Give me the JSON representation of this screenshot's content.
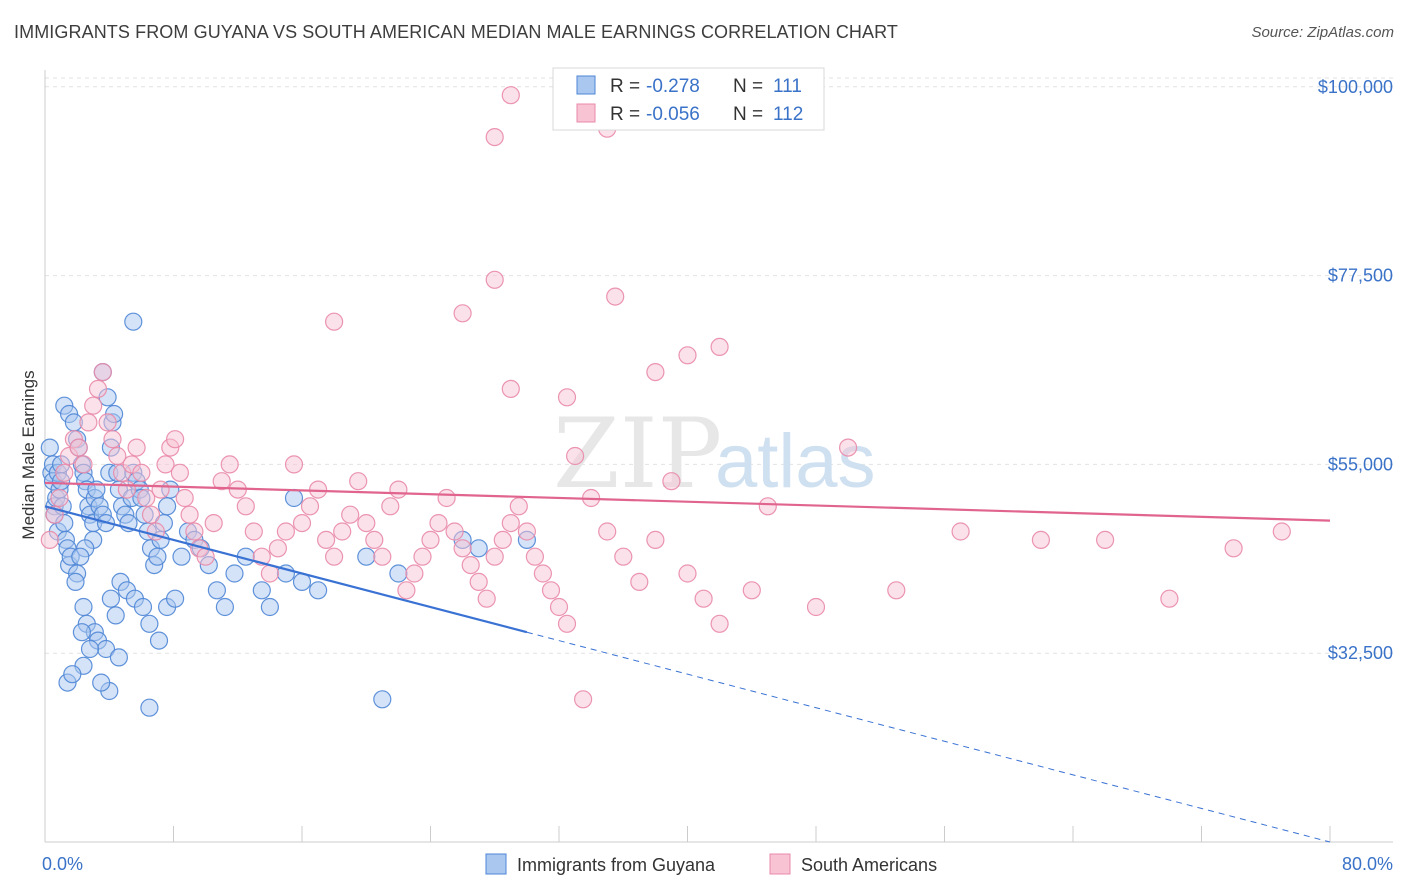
{
  "title": "IMMIGRANTS FROM GUYANA VS SOUTH AMERICAN MEDIAN MALE EARNINGS CORRELATION CHART",
  "source": "Source: ZipAtlas.com",
  "watermark": {
    "zip": "ZIP",
    "atlas": "atlas"
  },
  "colors": {
    "blue_fill": "#aac8ef",
    "blue_stroke": "#4f86d6",
    "blue_line": "#3a72d4",
    "pink_fill": "#f8c3d3",
    "pink_stroke": "#e989a9",
    "pink_line": "#e0648e",
    "grid": "#e2e2e2",
    "axis_text": "#3a72c8"
  },
  "chart_data": {
    "type": "scatter",
    "xlabel": "",
    "ylabel": "Median Male Earnings",
    "xlim": [
      0,
      80
    ],
    "ylim": [
      10000,
      102000
    ],
    "x_tick_labels": {
      "min": "0.0%",
      "max": "80.0%"
    },
    "y_ticks": [
      {
        "value": 100000,
        "label": "$100,000"
      },
      {
        "value": 77500,
        "label": "$77,500"
      },
      {
        "value": 55000,
        "label": "$55,000"
      },
      {
        "value": 32500,
        "label": "$32,500"
      }
    ],
    "legend": {
      "placement": "top-center",
      "rows": [
        {
          "r_label": "R = ",
          "r_value": "-0.278",
          "n_label": "N = ",
          "n_value": "111"
        },
        {
          "r_label": "R = ",
          "r_value": "-0.056",
          "n_label": "N = ",
          "n_value": "112"
        }
      ]
    },
    "series": [
      {
        "name": "Immigrants from Guyana",
        "color": "#4f86d6",
        "trend": {
          "x0": 0,
          "y0": 50000,
          "x1": 30,
          "y1": 35000,
          "dash_to_x": 80,
          "dash_to_y": 10000
        },
        "points": [
          [
            0.3,
            57
          ],
          [
            0.4,
            54
          ],
          [
            0.5,
            55
          ],
          [
            0.5,
            53
          ],
          [
            0.6,
            50
          ],
          [
            0.6,
            49
          ],
          [
            0.7,
            51
          ],
          [
            0.8,
            54
          ],
          [
            0.8,
            47
          ],
          [
            0.9,
            52
          ],
          [
            1.0,
            55
          ],
          [
            1.0,
            53
          ],
          [
            1.1,
            50
          ],
          [
            1.2,
            48
          ],
          [
            1.3,
            46
          ],
          [
            1.4,
            45
          ],
          [
            1.5,
            43
          ],
          [
            1.6,
            44
          ],
          [
            1.2,
            62
          ],
          [
            1.5,
            61
          ],
          [
            1.8,
            60
          ],
          [
            2.0,
            58
          ],
          [
            2.1,
            57
          ],
          [
            2.3,
            55
          ],
          [
            2.4,
            54
          ],
          [
            2.5,
            53
          ],
          [
            2.6,
            52
          ],
          [
            2.7,
            50
          ],
          [
            2.8,
            49
          ],
          [
            3.0,
            48
          ],
          [
            3.1,
            51
          ],
          [
            3.2,
            52
          ],
          [
            3.4,
            50
          ],
          [
            3.6,
            49
          ],
          [
            3.8,
            48
          ],
          [
            4.0,
            54
          ],
          [
            4.1,
            57
          ],
          [
            4.2,
            60
          ],
          [
            4.3,
            61
          ],
          [
            4.5,
            54
          ],
          [
            4.6,
            52
          ],
          [
            4.8,
            50
          ],
          [
            5.0,
            49
          ],
          [
            5.2,
            48
          ],
          [
            5.4,
            51
          ],
          [
            5.5,
            54
          ],
          [
            5.7,
            53
          ],
          [
            5.9,
            52
          ],
          [
            6.0,
            51
          ],
          [
            6.2,
            49
          ],
          [
            6.4,
            47
          ],
          [
            6.6,
            45
          ],
          [
            6.8,
            43
          ],
          [
            7.0,
            44
          ],
          [
            7.2,
            46
          ],
          [
            7.4,
            48
          ],
          [
            7.6,
            50
          ],
          [
            7.8,
            52
          ],
          [
            3.0,
            46
          ],
          [
            2.5,
            45
          ],
          [
            2.2,
            44
          ],
          [
            2.0,
            42
          ],
          [
            1.9,
            41
          ],
          [
            2.4,
            38
          ],
          [
            2.6,
            36
          ],
          [
            3.1,
            35
          ],
          [
            3.3,
            34
          ],
          [
            3.8,
            33
          ],
          [
            4.1,
            39
          ],
          [
            4.4,
            37
          ],
          [
            4.7,
            41
          ],
          [
            5.1,
            40
          ],
          [
            5.6,
            39
          ],
          [
            6.1,
            38
          ],
          [
            6.5,
            36
          ],
          [
            7.1,
            34
          ],
          [
            7.6,
            38
          ],
          [
            8.1,
            39
          ],
          [
            8.5,
            44
          ],
          [
            8.9,
            47
          ],
          [
            9.3,
            46
          ],
          [
            9.7,
            45
          ],
          [
            10.2,
            43
          ],
          [
            10.7,
            40
          ],
          [
            11.2,
            38
          ],
          [
            11.8,
            42
          ],
          [
            12.5,
            44
          ],
          [
            13.5,
            40
          ],
          [
            14.0,
            38
          ],
          [
            15.0,
            42
          ],
          [
            16.0,
            41
          ],
          [
            17.0,
            40
          ],
          [
            5.5,
            72
          ],
          [
            3.6,
            66
          ],
          [
            3.9,
            63
          ],
          [
            4.6,
            32
          ],
          [
            6.5,
            26
          ],
          [
            4.0,
            28
          ],
          [
            3.5,
            29
          ],
          [
            1.4,
            29
          ],
          [
            2.4,
            31
          ],
          [
            2.8,
            33
          ],
          [
            1.7,
            30
          ],
          [
            2.3,
            35
          ],
          [
            20.0,
            44
          ],
          [
            22.0,
            42
          ],
          [
            26.0,
            46
          ],
          [
            27.0,
            45
          ],
          [
            30.0,
            46
          ],
          [
            15.5,
            51
          ],
          [
            21.0,
            27
          ]
        ]
      },
      {
        "name": "South Americans",
        "color": "#e989a9",
        "trend": {
          "x0": 0,
          "y0": 52800,
          "x1": 80,
          "y1": 48300
        },
        "points": [
          [
            0.3,
            46
          ],
          [
            0.6,
            49
          ],
          [
            0.9,
            51
          ],
          [
            1.2,
            54
          ],
          [
            1.5,
            56
          ],
          [
            1.8,
            58
          ],
          [
            2.1,
            57
          ],
          [
            2.4,
            55
          ],
          [
            2.7,
            60
          ],
          [
            3.0,
            62
          ],
          [
            3.3,
            64
          ],
          [
            3.6,
            66
          ],
          [
            3.9,
            60
          ],
          [
            4.2,
            58
          ],
          [
            4.5,
            56
          ],
          [
            4.8,
            54
          ],
          [
            5.1,
            52
          ],
          [
            5.4,
            55
          ],
          [
            5.7,
            57
          ],
          [
            6.0,
            54
          ],
          [
            6.3,
            51
          ],
          [
            6.6,
            49
          ],
          [
            6.9,
            47
          ],
          [
            7.2,
            52
          ],
          [
            7.5,
            55
          ],
          [
            7.8,
            57
          ],
          [
            8.1,
            58
          ],
          [
            8.4,
            54
          ],
          [
            8.7,
            51
          ],
          [
            9.0,
            49
          ],
          [
            9.3,
            47
          ],
          [
            9.6,
            45
          ],
          [
            10.0,
            44
          ],
          [
            10.5,
            48
          ],
          [
            11.0,
            53
          ],
          [
            11.5,
            55
          ],
          [
            12.0,
            52
          ],
          [
            12.5,
            50
          ],
          [
            13.0,
            47
          ],
          [
            13.5,
            44
          ],
          [
            14.0,
            42
          ],
          [
            14.5,
            45
          ],
          [
            15.0,
            47
          ],
          [
            15.5,
            55
          ],
          [
            16.0,
            48
          ],
          [
            16.5,
            50
          ],
          [
            17.0,
            52
          ],
          [
            17.5,
            46
          ],
          [
            18.0,
            44
          ],
          [
            18.5,
            47
          ],
          [
            19.0,
            49
          ],
          [
            19.5,
            53
          ],
          [
            20.0,
            48
          ],
          [
            20.5,
            46
          ],
          [
            21.0,
            44
          ],
          [
            21.5,
            50
          ],
          [
            22.0,
            52
          ],
          [
            22.5,
            40
          ],
          [
            23.0,
            42
          ],
          [
            23.5,
            44
          ],
          [
            24.0,
            46
          ],
          [
            24.5,
            48
          ],
          [
            25.0,
            51
          ],
          [
            25.5,
            47
          ],
          [
            26.0,
            45
          ],
          [
            26.5,
            43
          ],
          [
            27.0,
            41
          ],
          [
            27.5,
            39
          ],
          [
            28.0,
            44
          ],
          [
            28.5,
            46
          ],
          [
            29.0,
            48
          ],
          [
            29.5,
            50
          ],
          [
            30.0,
            47
          ],
          [
            30.5,
            44
          ],
          [
            31.0,
            42
          ],
          [
            31.5,
            40
          ],
          [
            32.0,
            38
          ],
          [
            32.5,
            36
          ],
          [
            33.0,
            56
          ],
          [
            34.0,
            51
          ],
          [
            35.0,
            47
          ],
          [
            36.0,
            44
          ],
          [
            37.0,
            41
          ],
          [
            38.0,
            46
          ],
          [
            39.0,
            53
          ],
          [
            40.0,
            42
          ],
          [
            41.0,
            39
          ],
          [
            42.0,
            36
          ],
          [
            18.0,
            72
          ],
          [
            28.0,
            77
          ],
          [
            26.0,
            73
          ],
          [
            35.5,
            75
          ],
          [
            38.0,
            66
          ],
          [
            40.0,
            68
          ],
          [
            42.0,
            69
          ],
          [
            29.0,
            64
          ],
          [
            32.5,
            63
          ],
          [
            29.0,
            99
          ],
          [
            28.0,
            94
          ],
          [
            35.0,
            95
          ],
          [
            45.0,
            50
          ],
          [
            50.0,
            57
          ],
          [
            53.0,
            40
          ],
          [
            57.0,
            47
          ],
          [
            62.0,
            46
          ],
          [
            66.0,
            46
          ],
          [
            70.0,
            39
          ],
          [
            74.0,
            45
          ],
          [
            77.0,
            47
          ],
          [
            48.0,
            38
          ],
          [
            44.0,
            40
          ],
          [
            33.5,
            27
          ]
        ]
      }
    ]
  }
}
